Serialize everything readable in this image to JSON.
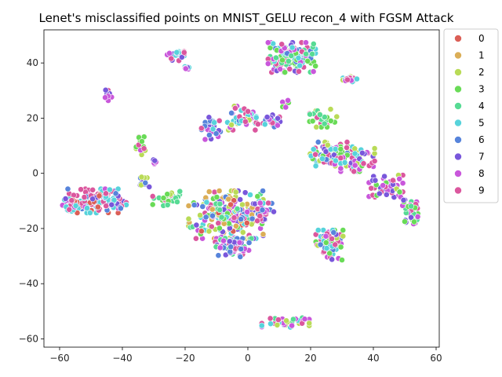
{
  "chart_data": {
    "type": "scatter",
    "title": "Lenet's misclassified points on MNIST_GELU recon_4 with FGSM Attack",
    "xlabel": "",
    "ylabel": "",
    "xlim": [
      -65,
      61
    ],
    "ylim": [
      -63,
      52
    ],
    "xticks": [
      -60,
      -40,
      -20,
      0,
      20,
      40,
      60
    ],
    "yticks": [
      -60,
      -40,
      -20,
      0,
      20,
      40
    ],
    "grid": false,
    "legend_position": "upper-right-outside",
    "series": [
      {
        "name": "0",
        "color": "#db5f57"
      },
      {
        "name": "1",
        "color": "#dbae57"
      },
      {
        "name": "2",
        "color": "#b9db57"
      },
      {
        "name": "3",
        "color": "#69db57"
      },
      {
        "name": "4",
        "color": "#57db94"
      },
      {
        "name": "5",
        "color": "#57d3db"
      },
      {
        "name": "6",
        "color": "#5784db"
      },
      {
        "name": "7",
        "color": "#7957db"
      },
      {
        "name": "8",
        "color": "#c957db"
      },
      {
        "name": "9",
        "color": "#db579e"
      }
    ],
    "clusters": [
      {
        "cx": -50,
        "cy": -10,
        "rx": 8,
        "ry": 4,
        "n": 120,
        "mix": [
          9,
          9,
          9,
          5,
          6,
          7,
          8,
          0
        ]
      },
      {
        "cx": -57,
        "cy": -12,
        "rx": 2,
        "ry": 2,
        "n": 18,
        "mix": [
          9,
          5,
          8
        ]
      },
      {
        "cx": -42,
        "cy": -10,
        "rx": 3,
        "ry": 2.5,
        "n": 30,
        "mix": [
          9,
          6,
          5,
          7
        ]
      },
      {
        "cx": -34,
        "cy": 10,
        "rx": 1.5,
        "ry": 3,
        "n": 20,
        "mix": [
          9,
          2,
          8,
          3
        ]
      },
      {
        "cx": -33,
        "cy": -3,
        "rx": 1.5,
        "ry": 2.5,
        "n": 12,
        "mix": [
          6,
          7,
          2
        ]
      },
      {
        "cx": -30,
        "cy": 4,
        "rx": 1,
        "ry": 1,
        "n": 6,
        "mix": [
          8,
          7
        ]
      },
      {
        "cx": -26,
        "cy": -9,
        "rx": 4,
        "ry": 2.5,
        "n": 30,
        "mix": [
          3,
          4,
          2,
          9
        ]
      },
      {
        "cx": -23,
        "cy": 43,
        "rx": 2.5,
        "ry": 2,
        "n": 25,
        "mix": [
          7,
          8,
          9,
          5
        ]
      },
      {
        "cx": -19,
        "cy": 38,
        "rx": 1.5,
        "ry": 1,
        "n": 8,
        "mix": [
          8,
          5,
          7
        ]
      },
      {
        "cx": -45,
        "cy": 28,
        "rx": 1.5,
        "ry": 2,
        "n": 10,
        "mix": [
          9,
          8,
          7
        ]
      },
      {
        "cx": -12,
        "cy": 16,
        "rx": 3,
        "ry": 4,
        "n": 30,
        "mix": [
          5,
          6,
          9,
          8,
          7
        ]
      },
      {
        "cx": -3,
        "cy": 20,
        "rx": 5,
        "ry": 4,
        "n": 40,
        "mix": [
          5,
          9,
          6,
          8,
          2
        ]
      },
      {
        "cx": 7,
        "cy": 19,
        "rx": 4,
        "ry": 2,
        "n": 25,
        "mix": [
          5,
          6,
          9,
          7,
          8
        ]
      },
      {
        "cx": 12,
        "cy": 25,
        "rx": 2,
        "ry": 1.5,
        "n": 8,
        "mix": [
          8,
          3,
          9
        ]
      },
      {
        "cx": -7,
        "cy": -15,
        "rx": 11,
        "ry": 8,
        "n": 260,
        "mix": [
          3,
          4,
          5,
          6,
          7,
          8,
          9,
          2,
          0,
          1
        ]
      },
      {
        "cx": -5,
        "cy": -27,
        "rx": 5,
        "ry": 3,
        "n": 50,
        "mix": [
          7,
          8,
          9,
          4,
          6
        ]
      },
      {
        "cx": 5,
        "cy": -14,
        "rx": 3,
        "ry": 3,
        "n": 30,
        "mix": [
          8,
          9,
          7,
          6
        ]
      },
      {
        "cx": 14,
        "cy": 42,
        "rx": 7,
        "ry": 5,
        "n": 130,
        "mix": [
          5,
          8,
          9,
          7,
          3,
          6,
          4
        ]
      },
      {
        "cx": 24,
        "cy": 20,
        "rx": 4,
        "ry": 3,
        "n": 30,
        "mix": [
          3,
          4,
          2,
          9
        ]
      },
      {
        "cx": 27,
        "cy": 7,
        "rx": 7,
        "ry": 4,
        "n": 90,
        "mix": [
          9,
          8,
          3,
          5,
          6,
          7,
          2
        ]
      },
      {
        "cx": 33,
        "cy": 34,
        "rx": 2.5,
        "ry": 1,
        "n": 25,
        "mix": [
          8,
          9,
          5,
          2
        ]
      },
      {
        "cx": 35,
        "cy": 5,
        "rx": 5,
        "ry": 4,
        "n": 60,
        "mix": [
          7,
          8,
          3,
          2,
          5,
          9
        ]
      },
      {
        "cx": 44,
        "cy": -5,
        "rx": 5,
        "ry": 4,
        "n": 50,
        "mix": [
          8,
          9,
          3,
          2,
          7
        ]
      },
      {
        "cx": 52,
        "cy": -14,
        "rx": 2.5,
        "ry": 4,
        "n": 35,
        "mix": [
          8,
          9,
          4,
          3,
          7
        ]
      },
      {
        "cx": 26,
        "cy": -26,
        "rx": 4,
        "ry": 5,
        "n": 65,
        "mix": [
          6,
          5,
          7,
          3,
          2,
          8,
          9
        ]
      },
      {
        "cx": 12,
        "cy": -54,
        "rx": 7,
        "ry": 2,
        "n": 40,
        "mix": [
          5,
          2,
          4,
          8,
          9
        ]
      }
    ]
  }
}
